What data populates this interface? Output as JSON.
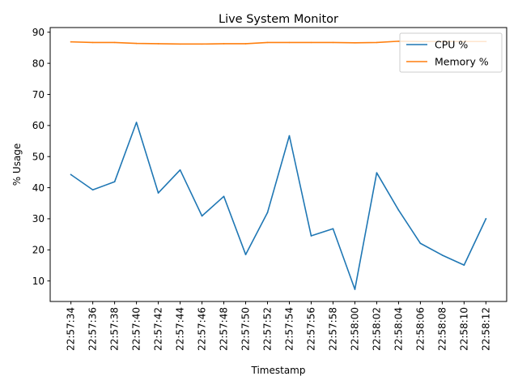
{
  "chart_data": {
    "type": "line",
    "title": "Live System Monitor",
    "xlabel": "Timestamp",
    "ylabel": "% Usage",
    "categories": [
      "22:57:34",
      "22:57:36",
      "22:57:38",
      "22:57:40",
      "22:57:42",
      "22:57:44",
      "22:57:46",
      "22:57:48",
      "22:57:50",
      "22:57:52",
      "22:57:54",
      "22:57:56",
      "22:57:58",
      "22:58:00",
      "22:58:02",
      "22:58:04",
      "22:58:06",
      "22:58:08",
      "22:58:10",
      "22:58:12"
    ],
    "yticks": [
      10,
      20,
      30,
      40,
      50,
      60,
      70,
      80,
      90
    ],
    "ylim": [
      3.4,
      91.5
    ],
    "grid": false,
    "legend": "top-right",
    "series": [
      {
        "name": "CPU %",
        "color": "#1f77b4",
        "values": [
          44.2,
          39.3,
          41.9,
          61.0,
          38.3,
          45.7,
          30.9,
          37.2,
          18.5,
          32.0,
          56.7,
          24.5,
          26.8,
          7.3,
          44.8,
          32.8,
          22.1,
          18.3,
          15.1,
          30.0
        ]
      },
      {
        "name": "Memory %",
        "color": "#ff7f0e",
        "values": [
          86.9,
          86.7,
          86.7,
          86.4,
          86.3,
          86.2,
          86.2,
          86.3,
          86.3,
          86.7,
          86.7,
          86.7,
          86.7,
          86.6,
          86.7,
          87.1,
          87.0,
          87.0,
          87.0,
          87.0
        ]
      }
    ]
  }
}
